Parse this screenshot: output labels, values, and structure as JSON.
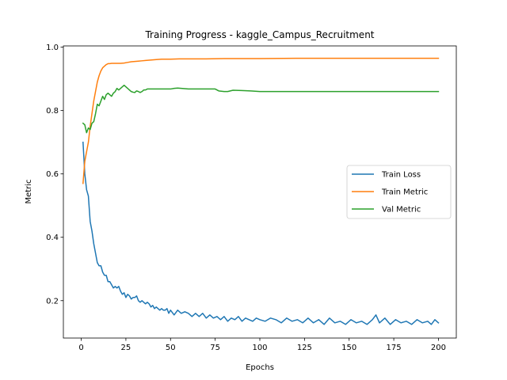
{
  "chart_data": {
    "type": "line",
    "title": "Training Progress - kaggle_Campus_Recruitment",
    "xlabel": "Epochs",
    "ylabel": "Metric",
    "xlim": [
      -10,
      210
    ],
    "ylim": [
      0.082,
      1.004
    ],
    "xticks": [
      0,
      25,
      50,
      75,
      100,
      125,
      150,
      175,
      200
    ],
    "yticks": [
      0.2,
      0.4,
      0.6,
      0.8,
      1.0
    ],
    "ytick_labels": [
      "0.2",
      "0.4",
      "0.6",
      "0.8",
      "1.0"
    ],
    "grid": false,
    "legend_position": "center-right",
    "series": [
      {
        "name": "Train Loss",
        "color": "#1f77b4",
        "x": [
          1,
          2,
          3,
          4,
          5,
          6,
          7,
          8,
          9,
          10,
          11,
          12,
          13,
          14,
          15,
          16,
          17,
          18,
          19,
          20,
          21,
          22,
          23,
          24,
          25,
          26,
          27,
          28,
          29,
          30,
          31,
          32,
          33,
          34,
          35,
          36,
          37,
          38,
          39,
          40,
          41,
          42,
          43,
          44,
          45,
          46,
          47,
          48,
          49,
          50,
          52,
          54,
          56,
          58,
          60,
          62,
          64,
          66,
          68,
          70,
          72,
          74,
          76,
          78,
          80,
          82,
          84,
          86,
          88,
          90,
          92,
          94,
          96,
          98,
          100,
          103,
          106,
          109,
          112,
          115,
          118,
          121,
          124,
          127,
          130,
          133,
          136,
          139,
          142,
          145,
          148,
          151,
          154,
          157,
          160,
          163,
          165,
          167,
          170,
          173,
          176,
          179,
          182,
          185,
          188,
          191,
          194,
          196,
          198,
          200
        ],
        "y": [
          0.7,
          0.6,
          0.55,
          0.53,
          0.45,
          0.42,
          0.38,
          0.35,
          0.32,
          0.31,
          0.31,
          0.29,
          0.28,
          0.28,
          0.26,
          0.26,
          0.25,
          0.24,
          0.245,
          0.24,
          0.245,
          0.23,
          0.22,
          0.225,
          0.21,
          0.22,
          0.215,
          0.205,
          0.21,
          0.21,
          0.215,
          0.2,
          0.195,
          0.2,
          0.195,
          0.19,
          0.195,
          0.19,
          0.18,
          0.185,
          0.175,
          0.18,
          0.175,
          0.17,
          0.175,
          0.17,
          0.17,
          0.175,
          0.16,
          0.17,
          0.155,
          0.17,
          0.16,
          0.165,
          0.16,
          0.15,
          0.16,
          0.15,
          0.16,
          0.145,
          0.155,
          0.145,
          0.15,
          0.14,
          0.15,
          0.135,
          0.145,
          0.14,
          0.15,
          0.135,
          0.145,
          0.14,
          0.135,
          0.145,
          0.14,
          0.135,
          0.145,
          0.14,
          0.13,
          0.145,
          0.135,
          0.14,
          0.13,
          0.145,
          0.13,
          0.14,
          0.125,
          0.145,
          0.13,
          0.135,
          0.125,
          0.14,
          0.13,
          0.135,
          0.125,
          0.14,
          0.155,
          0.13,
          0.145,
          0.125,
          0.14,
          0.13,
          0.135,
          0.125,
          0.14,
          0.13,
          0.135,
          0.125,
          0.14,
          0.13
        ]
      },
      {
        "name": "Train Metric",
        "color": "#ff7f0e",
        "x": [
          1,
          2,
          3,
          4,
          5,
          6,
          7,
          8,
          9,
          10,
          11,
          12,
          13,
          14,
          15,
          16,
          17,
          18,
          19,
          20,
          22,
          24,
          26,
          28,
          30,
          32,
          34,
          36,
          38,
          40,
          42,
          45,
          50,
          55,
          60,
          70,
          80,
          90,
          100,
          120,
          140,
          160,
          180,
          200
        ],
        "y": [
          0.57,
          0.64,
          0.67,
          0.7,
          0.75,
          0.79,
          0.83,
          0.86,
          0.89,
          0.91,
          0.925,
          0.935,
          0.94,
          0.945,
          0.948,
          0.948,
          0.949,
          0.949,
          0.949,
          0.949,
          0.949,
          0.95,
          0.952,
          0.954,
          0.955,
          0.956,
          0.957,
          0.958,
          0.959,
          0.96,
          0.961,
          0.962,
          0.962,
          0.963,
          0.963,
          0.963,
          0.964,
          0.964,
          0.964,
          0.965,
          0.965,
          0.965,
          0.965,
          0.965
        ]
      },
      {
        "name": "Val Metric",
        "color": "#2ca02c",
        "x": [
          1,
          2,
          3,
          4,
          5,
          6,
          7,
          8,
          9,
          10,
          11,
          12,
          13,
          14,
          15,
          16,
          17,
          18,
          19,
          20,
          21,
          22,
          23,
          24,
          25,
          26,
          27,
          28,
          29,
          30,
          31,
          32,
          33,
          34,
          35,
          36,
          37,
          38,
          40,
          45,
          50,
          52,
          54,
          56,
          58,
          60,
          65,
          70,
          75,
          77,
          80,
          82,
          85,
          90,
          95,
          100,
          120,
          140,
          160,
          180,
          200
        ],
        "y": [
          0.76,
          0.755,
          0.73,
          0.745,
          0.74,
          0.76,
          0.765,
          0.79,
          0.82,
          0.815,
          0.83,
          0.845,
          0.835,
          0.85,
          0.855,
          0.85,
          0.845,
          0.855,
          0.86,
          0.87,
          0.865,
          0.87,
          0.875,
          0.88,
          0.875,
          0.87,
          0.865,
          0.86,
          0.858,
          0.857,
          0.862,
          0.86,
          0.857,
          0.86,
          0.865,
          0.865,
          0.868,
          0.868,
          0.868,
          0.868,
          0.868,
          0.87,
          0.871,
          0.87,
          0.869,
          0.868,
          0.868,
          0.868,
          0.868,
          0.862,
          0.86,
          0.86,
          0.864,
          0.863,
          0.862,
          0.86,
          0.86,
          0.86,
          0.86,
          0.86,
          0.86
        ]
      }
    ]
  }
}
